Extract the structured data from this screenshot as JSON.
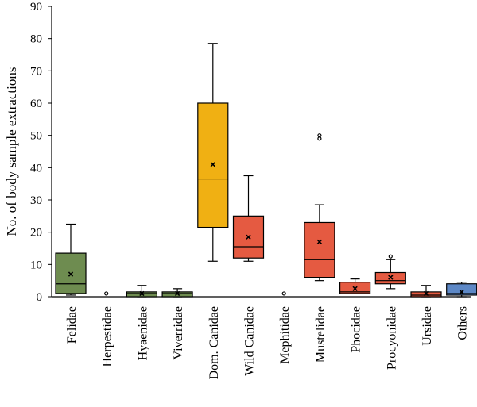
{
  "chart_data": {
    "type": "box",
    "title": "",
    "xlabel": "",
    "ylabel": "No. of body sample extractions",
    "ylim": [
      0,
      90
    ],
    "yticks": [
      0,
      10,
      20,
      30,
      40,
      50,
      60,
      70,
      80,
      90
    ],
    "grid": false,
    "legend": "none",
    "categories": [
      "Felidae",
      "Herpestidae",
      "Hyaenidae",
      "Viverridae",
      "Dom. Canidae",
      "Wild Canidae",
      "Mephitidae",
      "Mustelidae",
      "Phocidae",
      "Procyonidae",
      "Ursidae",
      "Others"
    ],
    "boxes": [
      {
        "category": "Felidae",
        "color": "#6e8c50",
        "whisker_low": 0.5,
        "q1": 1,
        "median": 4,
        "q3": 13.5,
        "whisker_high": 22.5,
        "mean": 7,
        "outliers": []
      },
      {
        "category": "Herpestidae",
        "color": "#6e8c50",
        "whisker_low": null,
        "q1": null,
        "median": null,
        "q3": null,
        "whisker_high": null,
        "mean": null,
        "outliers": [
          1
        ]
      },
      {
        "category": "Hyaenidae",
        "color": "#6e8c50",
        "whisker_low": 0,
        "q1": 0,
        "median": 1,
        "q3": 1.5,
        "whisker_high": 3.5,
        "mean": 1,
        "outliers": []
      },
      {
        "category": "Viverridae",
        "color": "#6e8c50",
        "whisker_low": 0,
        "q1": 0,
        "median": 1,
        "q3": 1.5,
        "whisker_high": 2.5,
        "mean": 1,
        "outliers": []
      },
      {
        "category": "Dom. Canidae",
        "color": "#f0b013",
        "whisker_low": 11,
        "q1": 21.5,
        "median": 36.5,
        "q3": 60,
        "whisker_high": 78.5,
        "mean": 41,
        "outliers": []
      },
      {
        "category": "Wild Canidae",
        "color": "#e55a41",
        "whisker_low": 11,
        "q1": 12,
        "median": 15.5,
        "q3": 25,
        "whisker_high": 37.5,
        "mean": 18.5,
        "outliers": []
      },
      {
        "category": "Mephitidae",
        "color": "#e55a41",
        "whisker_low": null,
        "q1": null,
        "median": null,
        "q3": null,
        "whisker_high": null,
        "mean": null,
        "outliers": [
          1
        ]
      },
      {
        "category": "Mustelidae",
        "color": "#e55a41",
        "whisker_low": 5,
        "q1": 6,
        "median": 11.5,
        "q3": 23,
        "whisker_high": 28.5,
        "mean": 17,
        "outliers": [
          49,
          50
        ]
      },
      {
        "category": "Phocidae",
        "color": "#e55a41",
        "whisker_low": 1,
        "q1": 1,
        "median": 1.5,
        "q3": 4.5,
        "whisker_high": 5.5,
        "mean": 2.5,
        "outliers": []
      },
      {
        "category": "Procyonidae",
        "color": "#e55a41",
        "whisker_low": 2.5,
        "q1": 4,
        "median": 5,
        "q3": 7.5,
        "whisker_high": 11.5,
        "mean": 6,
        "outliers": [
          12.5
        ]
      },
      {
        "category": "Ursidae",
        "color": "#e55a41",
        "whisker_low": 0,
        "q1": 0,
        "median": 0.5,
        "q3": 1.5,
        "whisker_high": 3.5,
        "mean": 1,
        "outliers": []
      },
      {
        "category": "Others",
        "color": "#5d88c6",
        "whisker_low": 0,
        "q1": 0.5,
        "median": 1,
        "q3": 4,
        "whisker_high": 4.5,
        "mean": 1.5,
        "outliers": []
      }
    ]
  }
}
